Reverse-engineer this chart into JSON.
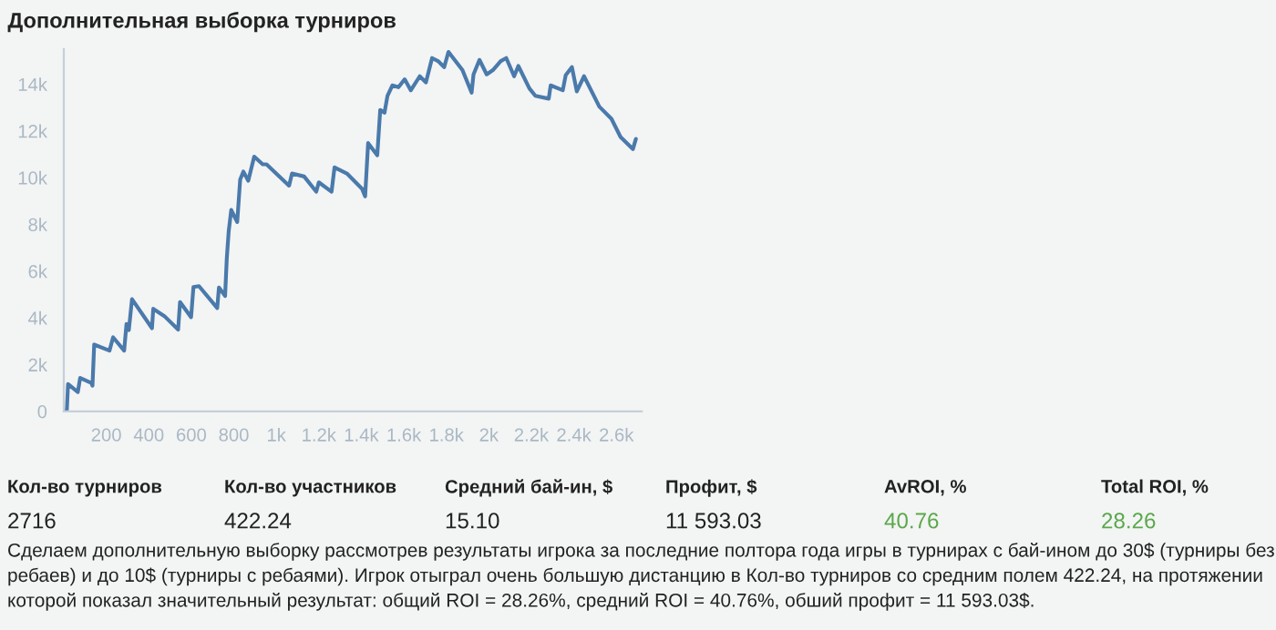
{
  "chart_data": {
    "type": "line",
    "title": "Дополнительная выборка турниров",
    "x": [
      0,
      14,
      20,
      66,
      77,
      129,
      135,
      143,
      215,
      232,
      284,
      295,
      306,
      321,
      415,
      421,
      473,
      538,
      547,
      599,
      610,
      636,
      722,
      730,
      759,
      767,
      776,
      788,
      816,
      830,
      845,
      868,
      896,
      936,
      954,
      1060,
      1074,
      1131,
      1188,
      1200,
      1260,
      1274,
      1332,
      1403,
      1418,
      1432,
      1475,
      1489,
      1509,
      1523,
      1546,
      1575,
      1604,
      1633,
      1675,
      1704,
      1733,
      1761,
      1790,
      1810,
      1876,
      1919,
      1928,
      1956,
      1990,
      2019,
      2056,
      2082,
      2119,
      2139,
      2191,
      2219,
      2282,
      2291,
      2348,
      2362,
      2391,
      2414,
      2448,
      2520,
      2577,
      2620,
      2678,
      2692
    ],
    "series": [
      {
        "color": "#4a7aab",
        "values": [
          0,
          0,
          1170,
          830,
          1430,
          1220,
          1100,
          2860,
          2600,
          3170,
          2600,
          3740,
          3480,
          4800,
          3560,
          4390,
          4080,
          3500,
          4680,
          4030,
          5320,
          5360,
          4420,
          5300,
          4940,
          6550,
          7710,
          8620,
          8100,
          9920,
          10260,
          9870,
          10900,
          10570,
          10570,
          9660,
          10180,
          10050,
          9400,
          9800,
          9400,
          10440,
          10180,
          9530,
          9200,
          11480,
          10960,
          12900,
          12780,
          13500,
          13950,
          13870,
          14210,
          13740,
          14340,
          14080,
          15120,
          14990,
          14730,
          15380,
          14600,
          13640,
          14420,
          15040,
          14420,
          14600,
          14990,
          15120,
          14340,
          14780,
          13820,
          13500,
          13380,
          13950,
          13740,
          14390,
          14730,
          13690,
          14340,
          13040,
          12520,
          11740,
          11220,
          11660
        ]
      }
    ],
    "xlim": [
      0,
      2720
    ],
    "ylim": [
      0,
      15500
    ],
    "xticks": [
      200,
      400,
      600,
      800,
      {
        "value": 1000,
        "label": "1k"
      },
      {
        "value": 1200,
        "label": "1.2k"
      },
      {
        "value": 1400,
        "label": "1.4k"
      },
      {
        "value": 1600,
        "label": "1.6k"
      },
      {
        "value": 1800,
        "label": "1.8k"
      },
      {
        "value": 2000,
        "label": "2k"
      },
      {
        "value": 2200,
        "label": "2.2k"
      },
      {
        "value": 2400,
        "label": "2.4k"
      },
      {
        "value": 2600,
        "label": "2.6k"
      }
    ],
    "yticks": [
      0,
      {
        "value": 2000,
        "label": "2k"
      },
      {
        "value": 4000,
        "label": "4k"
      },
      {
        "value": 6000,
        "label": "6k"
      },
      {
        "value": 8000,
        "label": "8k"
      },
      {
        "value": 10000,
        "label": "10k"
      },
      {
        "value": 12000,
        "label": "12k"
      },
      {
        "value": 14000,
        "label": "14k"
      }
    ],
    "grid": false,
    "legend": false,
    "marker": "none",
    "line_style": "solid",
    "annotations": [
      "Кол-во турниров",
      "Кол-во участников",
      "Средний бай-ин, $",
      "Профит, $",
      "AvROI, %",
      "Total ROI, %",
      "2716",
      "422.24",
      "15.10",
      "11 593.03",
      "40.76",
      "28.26",
      "Сделаем дополнительную выборку рассмотрев результаты игрока за последние полтора года игры в турнирах с бай-ином до 30$ (турниры без ребаев) и до 10$ (турниры с ребаями). Игрок отыграл очень большую дистанцию в Кол-во турниров со средним полем 422.24, на протяжении которой показал значительный результат: общий ROI = 28.26%, средний ROI = 40.76%, обший профит = 11 593.03$."
    ]
  }
}
